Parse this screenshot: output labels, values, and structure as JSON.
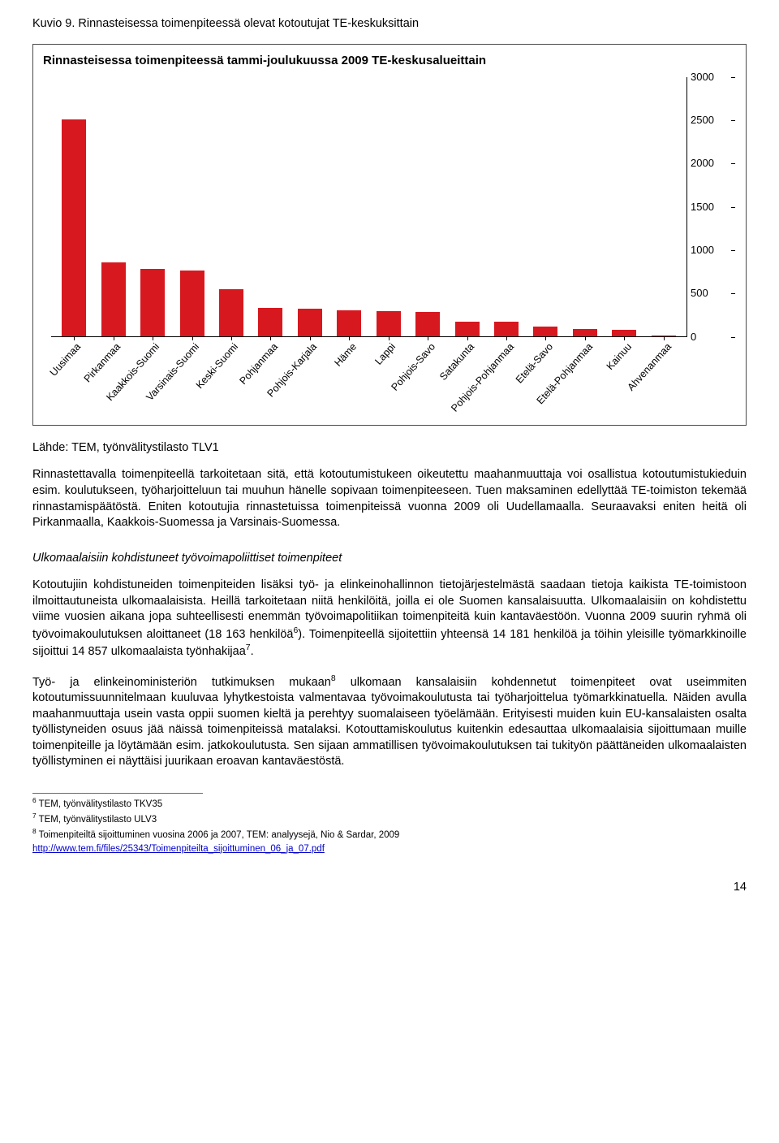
{
  "heading": "Kuvio 9. Rinnasteisessa toimenpiteessä olevat kotoutujat TE-keskuksittain",
  "chart": {
    "title": "Rinnasteisessa toimenpiteessä tammi-joulukuussa 2009 TE-keskusalueittain",
    "type": "bar",
    "background_color": "#ffffff",
    "bar_color": "#d7181f",
    "axis_color": "#000000",
    "ylim": [
      0,
      3000
    ],
    "ytick_step": 500,
    "categories": [
      "Uusimaa",
      "Pirkanmaa",
      "Kaakkois-Suomi",
      "Varsinais-Suomi",
      "Keski-Suomi",
      "Pohjanmaa",
      "Pohjois-Karjala",
      "Häme",
      "Lappi",
      "Pohjois-Savo",
      "Satakunta",
      "Pohjois-Pohjanmaa",
      "Etelä-Savo",
      "Etelä-Pohjanmaa",
      "Kainuu",
      "Ahvenanmaa"
    ],
    "values": [
      2500,
      850,
      780,
      760,
      540,
      330,
      320,
      300,
      290,
      280,
      170,
      170,
      110,
      80,
      70,
      5
    ],
    "label_fontsize": 12.5,
    "title_fontsize": 15
  },
  "source": "Lähde: TEM, työnvälitystilasto TLV1",
  "para1": "Rinnastettavalla toimenpiteellä tarkoitetaan sitä, että kotoutumistukeen oikeutettu maahanmuuttaja voi osallistua kotoutumistukieduin esim. koulutukseen, työharjoitteluun tai muuhun hänelle sopivaan toimenpiteeseen. Tuen maksaminen edellyttää TE-toimiston tekemää rinnastamispäätöstä. Eniten kotoutujia rinnastetuissa toimenpiteissä vuonna 2009 oli Uudellamaalla. Seuraavaksi eniten heitä oli Pirkanmaalla, Kaakkois-Suomessa ja Varsinais-Suomessa.",
  "section_title": "Ulkomaalaisiin kohdistuneet työvoimapoliittiset toimenpiteet",
  "para2_a": "Kotoutujiin kohdistuneiden toimenpiteiden lisäksi työ- ja elinkeinohallinnon tietojärjestelmästä saadaan tietoja kaikista TE-toimistoon ilmoittautuneista ulkomaalaisista. Heillä tarkoitetaan niitä henkilöitä, joilla ei ole Suomen kansalaisuutta. Ulkomaalaisiin on kohdistettu viime vuosien aikana jopa suhteellisesti enemmän työvoimapolitiikan toimenpiteitä kuin kantaväestöön. Vuonna 2009 suurin ryhmä oli työvoimakoulutuksen aloittaneet (18 163 henkilöä",
  "para2_b": "). Toimenpiteellä sijoitettiin yhteensä 14 181 henkilöä ja töihin yleisille työmarkkinoille sijoittui 14 857 ulkomaalaista työnhakijaa",
  "para2_c": ".",
  "para3_a": "Työ- ja elinkeinoministeriön tutkimuksen mukaan",
  "para3_b": " ulkomaan kansalaisiin kohdennetut toimenpiteet ovat useimmiten kotoutumissuunnitelmaan kuuluvaa lyhytkestoista valmentavaa työvoimakoulutusta tai työharjoittelua työmarkkinatuella. Näiden avulla maahanmuuttaja usein vasta oppii suomen kieltä ja perehtyy suomalaiseen työelämään. Erityisesti muiden kuin EU-kansalaisten osalta työllistyneiden osuus jää näissä toimenpiteissä matalaksi. Kotouttamiskoulutus kuitenkin edesauttaa ulkomaalaisia sijoittumaan muille toimenpiteille ja löytämään esim. jatkokoulutusta. Sen sijaan ammatillisen työvoimakoulutuksen tai tukityön päättäneiden ulkomaalaisten työllistyminen ei näyttäisi juurikaan eroavan kantaväestöstä.",
  "fn6_sup": "6",
  "fn7_sup": "7",
  "fn8_sup": "8",
  "footnotes": {
    "n6": "6",
    "t6": " TEM, työnvälitystilasto TKV35",
    "n7": "7",
    "t7": " TEM, työnvälitystilasto ULV3",
    "n8": "8",
    "t8": " Toimenpiteiltä sijoittuminen vuosina 2006 ja 2007, TEM: analyysejä, Nio & Sardar, 2009",
    "link": "http://www.tem.fi/files/25343/Toimenpiteilta_sijoittuminen_06_ja_07.pdf"
  },
  "page_number": "14"
}
